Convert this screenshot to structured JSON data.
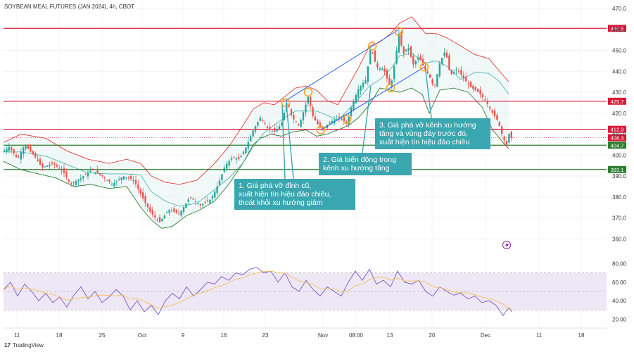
{
  "chart_data": {
    "type": "candlestick",
    "title": "SOYBEAN MEAL FUTURES (JAN 2024), 4h, CBOT",
    "ylim": [
      355,
      472
    ],
    "yticks": [
      470,
      460,
      450,
      440,
      430,
      420,
      410,
      400,
      390,
      380,
      370,
      360
    ],
    "ytick_labels": [
      "470.0",
      "460.0",
      "450.0",
      "440.0",
      "430.0",
      "420.0",
      "410.0",
      "400.0",
      "390.0",
      "380.0",
      "370.0",
      "360.0"
    ],
    "xtick_labels": [
      "11",
      "18",
      "25",
      "Oct",
      "9",
      "16",
      "23",
      "Nov",
      "08:00",
      "13",
      "20",
      "Dec",
      "11",
      "18"
    ],
    "levels": [
      {
        "value": 460.5,
        "label": "460.5",
        "color": "#d81b3c"
      },
      {
        "value": 425.7,
        "label": "425.7",
        "color": "#d81b3c"
      },
      {
        "value": 412.3,
        "label": "412.3",
        "color": "#d81b3c"
      },
      {
        "value": 404.7,
        "label": "404.7",
        "color": "#2e7d32"
      },
      {
        "value": 393.1,
        "label": "393.1",
        "color": "#2e7d32"
      }
    ],
    "last_price": {
      "value": 408.3,
      "label": "408.3",
      "color": "#d81b3c"
    },
    "price_path": [
      [
        0,
        402
      ],
      [
        8,
        404
      ],
      [
        20,
        398
      ],
      [
        30,
        405
      ],
      [
        45,
        399
      ],
      [
        55,
        394
      ],
      [
        70,
        396
      ],
      [
        85,
        392
      ],
      [
        95,
        386
      ],
      [
        110,
        389
      ],
      [
        125,
        393
      ],
      [
        140,
        390
      ],
      [
        155,
        386
      ],
      [
        170,
        390
      ],
      [
        185,
        388
      ],
      [
        200,
        378
      ],
      [
        210,
        372
      ],
      [
        222,
        368
      ],
      [
        235,
        374
      ],
      [
        250,
        372
      ],
      [
        265,
        380
      ],
      [
        280,
        376
      ],
      [
        295,
        379
      ],
      [
        305,
        386
      ],
      [
        315,
        395
      ],
      [
        325,
        399
      ],
      [
        335,
        398
      ],
      [
        345,
        404
      ],
      [
        355,
        412
      ],
      [
        365,
        418
      ],
      [
        375,
        413
      ],
      [
        385,
        411
      ],
      [
        395,
        415
      ],
      [
        403,
        426
      ],
      [
        410,
        418
      ],
      [
        420,
        414
      ],
      [
        433,
        428
      ],
      [
        440,
        418
      ],
      [
        452,
        412
      ],
      [
        465,
        416
      ],
      [
        478,
        418
      ],
      [
        488,
        415
      ],
      [
        495,
        424
      ],
      [
        505,
        432
      ],
      [
        515,
        436
      ],
      [
        522,
        452
      ],
      [
        530,
        442
      ],
      [
        540,
        441
      ],
      [
        550,
        432
      ],
      [
        557,
        446
      ],
      [
        562,
        458
      ],
      [
        568,
        448
      ],
      [
        575,
        452
      ],
      [
        582,
        443
      ],
      [
        590,
        447
      ],
      [
        597,
        442
      ],
      [
        605,
        438
      ],
      [
        612,
        432
      ],
      [
        620,
        444
      ],
      [
        628,
        450
      ],
      [
        635,
        438
      ],
      [
        645,
        441
      ],
      [
        655,
        436
      ],
      [
        665,
        432
      ],
      [
        675,
        430
      ],
      [
        685,
        426
      ],
      [
        695,
        420
      ],
      [
        703,
        416
      ],
      [
        710,
        408
      ],
      [
        715,
        405
      ],
      [
        719,
        411
      ],
      [
        722,
        408
      ]
    ],
    "bb_upper": [
      [
        0,
        406
      ],
      [
        25,
        410
      ],
      [
        60,
        408
      ],
      [
        90,
        402
      ],
      [
        120,
        398
      ],
      [
        150,
        396
      ],
      [
        175,
        398
      ],
      [
        195,
        396
      ],
      [
        210,
        390
      ],
      [
        230,
        387
      ],
      [
        250,
        386
      ],
      [
        275,
        388
      ],
      [
        300,
        396
      ],
      [
        320,
        404
      ],
      [
        340,
        414
      ],
      [
        355,
        422
      ],
      [
        370,
        425
      ],
      [
        385,
        424
      ],
      [
        400,
        428
      ],
      [
        415,
        432
      ],
      [
        430,
        433
      ],
      [
        445,
        431
      ],
      [
        460,
        426
      ],
      [
        475,
        424
      ],
      [
        490,
        433
      ],
      [
        505,
        442
      ],
      [
        520,
        452
      ],
      [
        535,
        454
      ],
      [
        550,
        458
      ],
      [
        563,
        463
      ],
      [
        580,
        466
      ],
      [
        600,
        458
      ],
      [
        615,
        458
      ],
      [
        630,
        456
      ],
      [
        650,
        452
      ],
      [
        670,
        448
      ],
      [
        690,
        446
      ],
      [
        705,
        440
      ],
      [
        718,
        435
      ]
    ],
    "bb_lower": [
      [
        0,
        397
      ],
      [
        25,
        393
      ],
      [
        50,
        391
      ],
      [
        75,
        389
      ],
      [
        100,
        385
      ],
      [
        125,
        386
      ],
      [
        150,
        384
      ],
      [
        175,
        385
      ],
      [
        195,
        375
      ],
      [
        210,
        369
      ],
      [
        225,
        365
      ],
      [
        240,
        366
      ],
      [
        260,
        371
      ],
      [
        280,
        374
      ],
      [
        300,
        378
      ],
      [
        320,
        386
      ],
      [
        340,
        396
      ],
      [
        355,
        405
      ],
      [
        365,
        408
      ],
      [
        380,
        410
      ],
      [
        395,
        409
      ],
      [
        410,
        411
      ],
      [
        430,
        412
      ],
      [
        445,
        409
      ],
      [
        460,
        410
      ],
      [
        475,
        412
      ],
      [
        490,
        414
      ],
      [
        505,
        418
      ],
      [
        520,
        424
      ],
      [
        535,
        432
      ],
      [
        550,
        431
      ],
      [
        563,
        430
      ],
      [
        580,
        432
      ],
      [
        595,
        429
      ],
      [
        605,
        420
      ],
      [
        620,
        431
      ],
      [
        640,
        432
      ],
      [
        660,
        430
      ],
      [
        680,
        423
      ],
      [
        695,
        412
      ],
      [
        710,
        406
      ],
      [
        718,
        403
      ]
    ],
    "trend_channel": {
      "upper": [
        [
          401,
          426
        ],
        [
          562,
          460
        ]
      ],
      "lower": [
        [
          451,
          412
        ],
        [
          598,
          442
        ]
      ],
      "touch_points_upper": [
        [
          401,
          425
        ],
        [
          433,
          430
        ],
        [
          524,
          452
        ],
        [
          562,
          459
        ]
      ],
      "touch_points_lower": [
        [
          451,
          412
        ],
        [
          488,
          417
        ],
        [
          550,
          432
        ],
        [
          598,
          442
        ]
      ]
    },
    "rsi": {
      "ylim": [
        15,
        85
      ],
      "yticks": [
        80,
        60,
        40,
        20
      ],
      "ytick_labels": [
        "80.00",
        "60.00",
        "40.00",
        "20.00"
      ],
      "band": [
        30,
        70
      ],
      "values": [
        [
          0,
          52
        ],
        [
          10,
          60
        ],
        [
          20,
          45
        ],
        [
          30,
          58
        ],
        [
          40,
          50
        ],
        [
          50,
          40
        ],
        [
          60,
          48
        ],
        [
          70,
          38
        ],
        [
          80,
          44
        ],
        [
          90,
          33
        ],
        [
          100,
          46
        ],
        [
          110,
          55
        ],
        [
          120,
          42
        ],
        [
          130,
          50
        ],
        [
          140,
          38
        ],
        [
          150,
          44
        ],
        [
          160,
          52
        ],
        [
          170,
          45
        ],
        [
          180,
          30
        ],
        [
          190,
          40
        ],
        [
          200,
          28
        ],
        [
          210,
          35
        ],
        [
          220,
          25
        ],
        [
          230,
          40
        ],
        [
          240,
          48
        ],
        [
          250,
          42
        ],
        [
          260,
          55
        ],
        [
          270,
          45
        ],
        [
          280,
          52
        ],
        [
          290,
          60
        ],
        [
          300,
          58
        ],
        [
          310,
          66
        ],
        [
          320,
          62
        ],
        [
          330,
          70
        ],
        [
          340,
          68
        ],
        [
          350,
          74
        ],
        [
          360,
          76
        ],
        [
          370,
          70
        ],
        [
          380,
          72
        ],
        [
          390,
          60
        ],
        [
          400,
          70
        ],
        [
          410,
          55
        ],
        [
          420,
          50
        ],
        [
          430,
          62
        ],
        [
          440,
          52
        ],
        [
          450,
          45
        ],
        [
          460,
          55
        ],
        [
          470,
          50
        ],
        [
          480,
          45
        ],
        [
          490,
          60
        ],
        [
          500,
          72
        ],
        [
          510,
          62
        ],
        [
          520,
          74
        ],
        [
          530,
          58
        ],
        [
          540,
          62
        ],
        [
          550,
          55
        ],
        [
          560,
          72
        ],
        [
          570,
          60
        ],
        [
          580,
          58
        ],
        [
          590,
          62
        ],
        [
          600,
          50
        ],
        [
          610,
          45
        ],
        [
          620,
          55
        ],
        [
          630,
          50
        ],
        [
          640,
          46
        ],
        [
          650,
          48
        ],
        [
          660,
          42
        ],
        [
          670,
          45
        ],
        [
          680,
          38
        ],
        [
          690,
          40
        ],
        [
          700,
          35
        ],
        [
          710,
          24
        ],
        [
          715,
          30
        ],
        [
          719,
          32
        ],
        [
          722,
          28
        ]
      ]
    }
  },
  "annotations": [
    {
      "id": "note1",
      "text": "1. Giá phá vỡ đỉnh cũ,\nxuất hiện tín hiệu đảo chiều,\nthoát khỏi xu hướng giảm"
    },
    {
      "id": "note2",
      "text": "2. Giá biến động trong\nkênh xu hướng tăng"
    },
    {
      "id": "note3",
      "text": "3. Giá phá vỡ kênh xu hướng\ntăng và vùng đáy trước đó,\nxuất hiện tín hiệu đảo chiều"
    }
  ],
  "footer": {
    "brand": "TradingView",
    "logo_mark": "17"
  },
  "colors": {
    "up": "#26a69a",
    "down": "#ef5350",
    "bb_upper": "#e53935",
    "bb_lower": "#2e7d32",
    "bb_fill": "#e8f5f3",
    "channel": "#2962ff",
    "touch": "#f5a623",
    "rsi": "#7e57c2",
    "rsi_band": "#ede7f6",
    "rsi_ma": "#f5c15a"
  }
}
